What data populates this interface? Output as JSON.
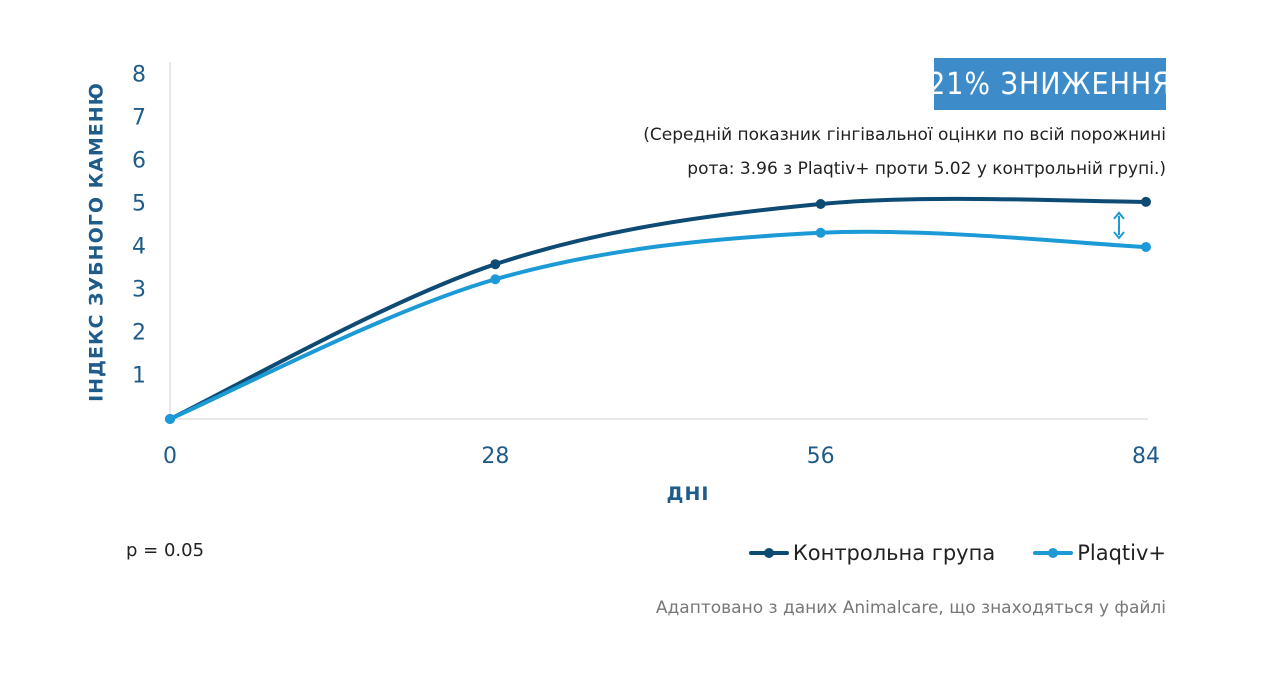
{
  "chart_data": {
    "type": "line",
    "title": "",
    "xlabel": "ДНІ",
    "ylabel": "ІНДЕКС ЗУБНОГО КАМЕНЮ",
    "x": [
      0,
      28,
      56,
      84
    ],
    "xticks": [
      "0",
      "28",
      "56",
      "84"
    ],
    "yticks": [
      "1",
      "2",
      "3",
      "4",
      "5",
      "6",
      "7",
      "8"
    ],
    "xlim": [
      0,
      84
    ],
    "ylim": [
      0,
      8
    ],
    "grid": false,
    "legend_position": "bottom-right",
    "series": [
      {
        "name": "Контрольна група",
        "values": [
          0,
          3.6,
          5.0,
          5.05
        ],
        "color": "#0d4a74"
      },
      {
        "name": "Plaqtiv+",
        "values": [
          0,
          3.25,
          4.33,
          4.0
        ],
        "color": "#1c9ad6"
      }
    ],
    "annotations": {
      "badge": "21% ЗНИЖЕННЯ",
      "badge_color": "#3d8bc9",
      "note_line1": "(Середній показник гінгівальної оцінки по всій порожнині",
      "note_line2": "рота: 3.96 з Plaqtiv+ проти 5.02 у контрольній групі.)",
      "arrow_color": "#1c9ad6"
    }
  },
  "footer": {
    "p_value": "p = 0.05",
    "source": "Адаптовано з даних Animalcare, що знаходяться у файлі"
  }
}
